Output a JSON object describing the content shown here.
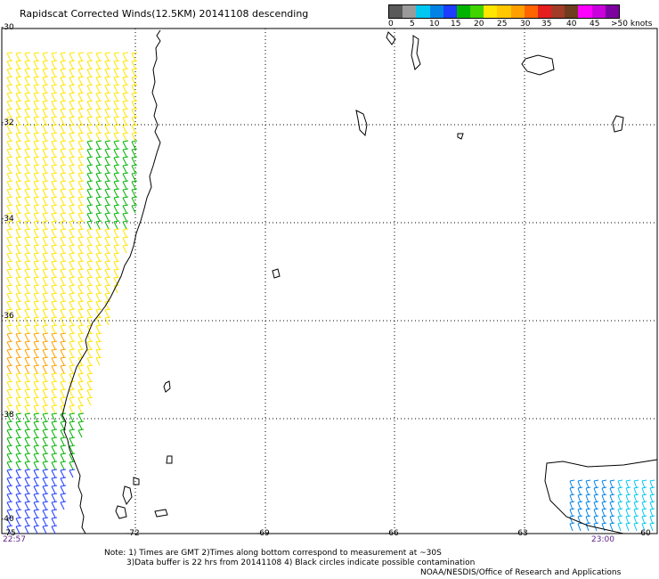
{
  "title": "Rapidscat Corrected Winds(12.5KM) 20141108 descending",
  "legend": {
    "colors": [
      "#5a5a5a",
      "#9b9b9b",
      "#00c8f0",
      "#0082e6",
      "#1e3cff",
      "#00b400",
      "#40d400",
      "#ffe600",
      "#ffc800",
      "#ffa000",
      "#ff6400",
      "#e61e1e",
      "#a03c28",
      "#6e3c1e",
      "#ff00ff",
      "#c800dc",
      "#7d00a0"
    ],
    "labels": [
      "0",
      "5",
      "10",
      "15",
      "20",
      "25",
      "30",
      "35",
      "40",
      "45",
      ">50 knots"
    ]
  },
  "axes": {
    "lat_labels": [
      "-30",
      "-32",
      "-34",
      "-36",
      "-38",
      "-40"
    ],
    "lon_labels": [
      "-75",
      "-72",
      "-69",
      "-66",
      "-63",
      "-60"
    ]
  },
  "times": {
    "left": "22:57",
    "right": "23:00"
  },
  "notes": [
    "Note: 1) Times are GMT 2)Times along bottom correspond to measurement at ~30S",
    "3)Data buffer is 22 hrs from 20141108 4) Black circles indicate possible contamination"
  ],
  "credit": "NOAA/NESDIS/Office of Research and Applications"
}
